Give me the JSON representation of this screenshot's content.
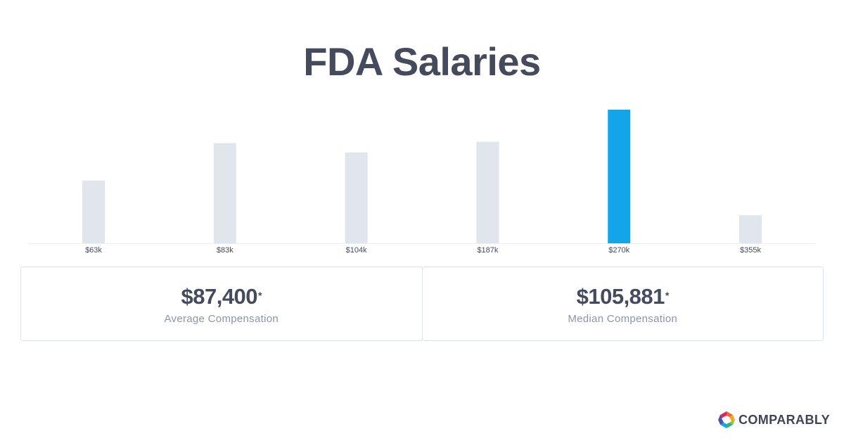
{
  "title": "FDA Salaries",
  "chart_data": {
    "type": "bar",
    "categories": [
      "$63k",
      "$83k",
      "$104k",
      "$187k",
      "$270k",
      "$355k"
    ],
    "values": [
      47,
      75,
      68,
      76,
      100,
      21
    ],
    "highlight_index": 4,
    "ylim": [
      0,
      100
    ],
    "grid": false,
    "colors": {
      "bar": "#e1e6ec",
      "highlight": "#13a5e9",
      "baseline": "#eef1f4"
    }
  },
  "stats": [
    {
      "value": "$87,400",
      "mark": "*",
      "label": "Average Compensation"
    },
    {
      "value": "$105,881",
      "mark": "*",
      "label": "Median Compensation"
    }
  ],
  "brand": {
    "name": "COMPARABLY",
    "logo_icon": "comparably-logo-icon"
  }
}
